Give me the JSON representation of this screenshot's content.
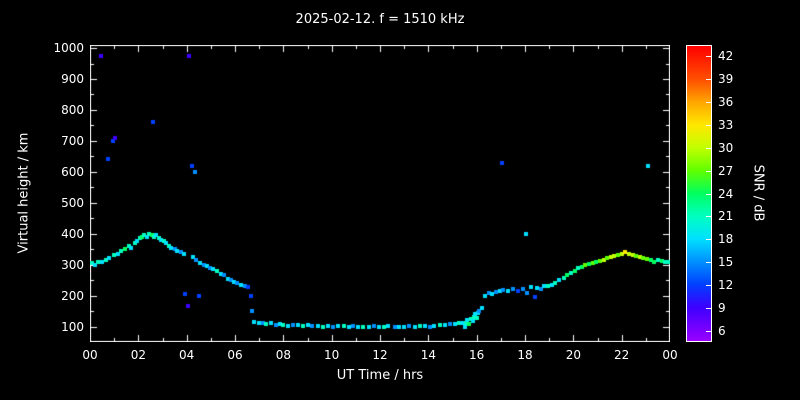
{
  "chart_data": {
    "type": "scatter",
    "title": "2025-02-12. f = 1510 kHz",
    "xlabel": "UT Time / hrs",
    "ylabel": "Virtual height / km",
    "colorbar_label": "SNR / dB",
    "xlim": [
      0,
      24
    ],
    "ylim": [
      50,
      1010
    ],
    "colorbar_range": [
      4.5,
      43.5
    ],
    "x_tick_values": [
      0,
      2,
      4,
      6,
      8,
      10,
      12,
      14,
      16,
      18,
      20,
      22,
      24
    ],
    "x_tick_labels": [
      "00",
      "02",
      "04",
      "06",
      "08",
      "10",
      "12",
      "14",
      "16",
      "18",
      "20",
      "22",
      "00"
    ],
    "y_ticks": [
      100,
      200,
      300,
      400,
      500,
      600,
      700,
      800,
      900,
      1000
    ],
    "colorbar_ticks": [
      6,
      9,
      12,
      15,
      18,
      21,
      24,
      27,
      30,
      33,
      36,
      39,
      42
    ],
    "color_stops": [
      {
        "v": 4.5,
        "c": "#9900ff"
      },
      {
        "v": 9,
        "c": "#3c00ff"
      },
      {
        "v": 12,
        "c": "#0040ff"
      },
      {
        "v": 15,
        "c": "#0090ff"
      },
      {
        "v": 18,
        "c": "#00e0ff"
      },
      {
        "v": 21,
        "c": "#00ffc0"
      },
      {
        "v": 24,
        "c": "#00ff60"
      },
      {
        "v": 27,
        "c": "#60ff00"
      },
      {
        "v": 30,
        "c": "#c0ff00"
      },
      {
        "v": 33,
        "c": "#ffe800"
      },
      {
        "v": 36,
        "c": "#ffa800"
      },
      {
        "v": 39,
        "c": "#ff5000"
      },
      {
        "v": 43.5,
        "c": "#ff0000"
      }
    ],
    "points": [
      [
        0.1,
        305,
        21
      ],
      [
        0.2,
        300,
        18
      ],
      [
        0.35,
        310,
        21
      ],
      [
        0.5,
        308,
        18
      ],
      [
        0.65,
        315,
        21
      ],
      [
        0.8,
        320,
        18
      ],
      [
        0.45,
        975,
        9
      ],
      [
        0.75,
        640,
        12
      ],
      [
        0.95,
        700,
        12
      ],
      [
        1.05,
        710,
        9
      ],
      [
        1.0,
        330,
        21
      ],
      [
        1.15,
        335,
        18
      ],
      [
        1.3,
        345,
        21
      ],
      [
        1.45,
        350,
        24
      ],
      [
        1.6,
        360,
        21
      ],
      [
        1.7,
        355,
        18
      ],
      [
        1.85,
        370,
        21
      ],
      [
        1.95,
        375,
        18
      ],
      [
        2.05,
        385,
        21
      ],
      [
        2.15,
        390,
        24
      ],
      [
        2.25,
        395,
        21
      ],
      [
        2.35,
        390,
        18
      ],
      [
        2.45,
        400,
        21
      ],
      [
        2.55,
        395,
        24
      ],
      [
        2.6,
        760,
        12
      ],
      [
        2.65,
        390,
        21
      ],
      [
        2.75,
        395,
        18
      ],
      [
        2.85,
        385,
        21
      ],
      [
        2.95,
        380,
        18
      ],
      [
        3.05,
        375,
        21
      ],
      [
        3.15,
        370,
        18
      ],
      [
        3.25,
        360,
        21
      ],
      [
        3.35,
        355,
        18
      ],
      [
        3.5,
        350,
        15
      ],
      [
        3.6,
        345,
        18
      ],
      [
        3.75,
        340,
        15
      ],
      [
        3.9,
        335,
        18
      ],
      [
        4.1,
        975,
        9
      ],
      [
        4.2,
        620,
        12
      ],
      [
        4.35,
        600,
        15
      ],
      [
        3.95,
        205,
        12
      ],
      [
        4.05,
        165,
        9
      ],
      [
        4.5,
        200,
        12
      ],
      [
        4.25,
        325,
        18
      ],
      [
        4.4,
        315,
        15
      ],
      [
        4.55,
        305,
        18
      ],
      [
        4.7,
        300,
        15
      ],
      [
        4.85,
        295,
        18
      ],
      [
        4.95,
        290,
        15
      ],
      [
        5.1,
        285,
        18
      ],
      [
        5.25,
        280,
        21
      ],
      [
        5.4,
        270,
        18
      ],
      [
        5.55,
        265,
        15
      ],
      [
        5.7,
        255,
        18
      ],
      [
        5.85,
        250,
        15
      ],
      [
        5.95,
        245,
        18
      ],
      [
        6.1,
        240,
        15
      ],
      [
        6.25,
        235,
        18
      ],
      [
        6.4,
        230,
        15
      ],
      [
        6.55,
        228,
        12
      ],
      [
        6.65,
        200,
        12
      ],
      [
        6.7,
        150,
        15
      ],
      [
        6.8,
        115,
        18
      ],
      [
        7.0,
        112,
        18
      ],
      [
        7.15,
        110,
        15
      ],
      [
        7.3,
        108,
        21
      ],
      [
        7.5,
        110,
        18
      ],
      [
        7.7,
        105,
        15
      ],
      [
        7.85,
        108,
        18
      ],
      [
        8.0,
        105,
        21
      ],
      [
        8.2,
        103,
        18
      ],
      [
        8.4,
        106,
        15
      ],
      [
        8.6,
        104,
        18
      ],
      [
        8.8,
        102,
        21
      ],
      [
        9.0,
        104,
        18
      ],
      [
        9.2,
        101,
        15
      ],
      [
        9.45,
        103,
        18
      ],
      [
        9.65,
        100,
        21
      ],
      [
        9.85,
        102,
        18
      ],
      [
        10.05,
        100,
        15
      ],
      [
        10.25,
        103,
        18
      ],
      [
        10.5,
        101,
        21
      ],
      [
        10.7,
        99,
        18
      ],
      [
        10.9,
        102,
        15
      ],
      [
        11.1,
        100,
        18
      ],
      [
        11.3,
        98,
        21
      ],
      [
        11.55,
        100,
        18
      ],
      [
        11.75,
        101,
        15
      ],
      [
        11.95,
        99,
        18
      ],
      [
        12.15,
        100,
        21
      ],
      [
        12.35,
        102,
        18
      ],
      [
        12.6,
        100,
        15
      ],
      [
        12.8,
        98,
        18
      ],
      [
        13.0,
        100,
        18
      ],
      [
        13.2,
        102,
        15
      ],
      [
        13.45,
        100,
        18
      ],
      [
        13.65,
        103,
        21
      ],
      [
        13.85,
        101,
        18
      ],
      [
        14.05,
        100,
        15
      ],
      [
        14.25,
        102,
        18
      ],
      [
        14.5,
        104,
        21
      ],
      [
        14.7,
        106,
        18
      ],
      [
        14.9,
        108,
        15
      ],
      [
        15.1,
        108,
        18
      ],
      [
        15.25,
        110,
        21
      ],
      [
        15.4,
        112,
        18
      ],
      [
        15.5,
        100,
        18
      ],
      [
        15.55,
        112,
        21
      ],
      [
        15.6,
        120,
        18
      ],
      [
        15.7,
        108,
        24
      ],
      [
        15.75,
        125,
        21
      ],
      [
        15.85,
        118,
        18
      ],
      [
        15.9,
        132,
        21
      ],
      [
        15.95,
        140,
        18
      ],
      [
        16.0,
        128,
        21
      ],
      [
        16.05,
        145,
        18
      ],
      [
        16.1,
        150,
        15
      ],
      [
        16.2,
        160,
        18
      ],
      [
        16.35,
        200,
        18
      ],
      [
        16.5,
        210,
        15
      ],
      [
        16.65,
        205,
        18
      ],
      [
        16.8,
        212,
        15
      ],
      [
        16.95,
        215,
        18
      ],
      [
        17.05,
        630,
        12
      ],
      [
        17.1,
        218,
        15
      ],
      [
        17.3,
        215,
        18
      ],
      [
        17.5,
        220,
        15
      ],
      [
        17.7,
        216,
        12
      ],
      [
        17.9,
        222,
        15
      ],
      [
        18.05,
        400,
        18
      ],
      [
        18.1,
        210,
        15
      ],
      [
        18.25,
        228,
        18
      ],
      [
        18.4,
        195,
        12
      ],
      [
        18.5,
        225,
        18
      ],
      [
        18.65,
        220,
        15
      ],
      [
        18.8,
        232,
        18
      ],
      [
        18.95,
        230,
        21
      ],
      [
        19.1,
        235,
        18
      ],
      [
        19.25,
        242,
        21
      ],
      [
        19.4,
        250,
        18
      ],
      [
        19.6,
        258,
        21
      ],
      [
        19.75,
        265,
        24
      ],
      [
        19.9,
        272,
        21
      ],
      [
        20.05,
        280,
        24
      ],
      [
        20.2,
        288,
        21
      ],
      [
        20.35,
        292,
        24
      ],
      [
        20.5,
        298,
        27
      ],
      [
        20.65,
        302,
        24
      ],
      [
        20.8,
        306,
        27
      ],
      [
        20.95,
        308,
        24
      ],
      [
        21.1,
        312,
        27
      ],
      [
        21.25,
        316,
        30
      ],
      [
        21.4,
        320,
        27
      ],
      [
        21.55,
        324,
        30
      ],
      [
        21.7,
        328,
        30
      ],
      [
        21.85,
        332,
        27
      ],
      [
        22.0,
        336,
        30
      ],
      [
        22.15,
        340,
        33
      ],
      [
        22.3,
        336,
        30
      ],
      [
        22.45,
        332,
        30
      ],
      [
        22.6,
        328,
        27
      ],
      [
        22.75,
        324,
        30
      ],
      [
        22.9,
        320,
        27
      ],
      [
        23.1,
        620,
        18
      ],
      [
        23.05,
        318,
        27
      ],
      [
        23.2,
        314,
        24
      ],
      [
        23.35,
        310,
        24
      ],
      [
        23.5,
        314,
        21
      ],
      [
        23.65,
        312,
        24
      ],
      [
        23.8,
        308,
        21
      ],
      [
        23.95,
        310,
        21
      ]
    ]
  }
}
